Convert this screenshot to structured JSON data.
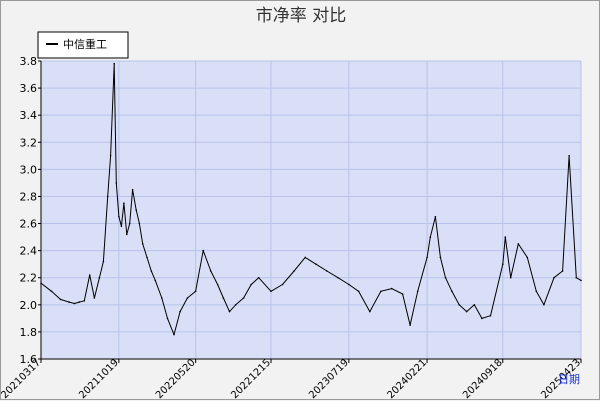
{
  "chart_data": {
    "type": "line",
    "title": "市净率  对比",
    "xlabel": "日期",
    "ylabel": "",
    "ylim": [
      1.6,
      3.8
    ],
    "yticks": [
      1.6,
      1.8,
      2.0,
      2.2,
      2.4,
      2.6,
      2.8,
      3.0,
      3.2,
      3.4,
      3.6,
      3.8
    ],
    "ytick_labels": [
      "1.6",
      "1.8",
      "2.0",
      "2.2",
      "2.4",
      "2.6",
      "2.8",
      "3.0",
      "3.2",
      "3.4",
      "3.6",
      "3.8"
    ],
    "xtick_labels": [
      "20210317",
      "20211019",
      "20220520",
      "20221215",
      "20230719",
      "20240221",
      "20240918",
      "20250423"
    ],
    "grid": true,
    "legend_position": "top-left",
    "series": [
      {
        "name": "中信重工",
        "color": "#000000",
        "x": [
          "20210317",
          "20210415",
          "20210510",
          "20210603",
          "20210618",
          "20210701",
          "20210715",
          "20210730",
          "20210812",
          "20210826",
          "20210906",
          "20210918",
          "20210926",
          "20211006",
          "20211012",
          "20211019",
          "20211026",
          "20211102",
          "20211110",
          "20211118",
          "20211126",
          "20211206",
          "20211215",
          "20211224",
          "20220105",
          "20220117",
          "20220128",
          "20220215",
          "20220303",
          "20220321",
          "20220407",
          "20220427",
          "20220520",
          "20220610",
          "20220701",
          "20220720",
          "20220805",
          "20220822",
          "20220908",
          "20220930",
          "20221021",
          "20221111",
          "20221215",
          "20230116",
          "20230217",
          "20230320",
          "20230419",
          "20230519",
          "20230619",
          "20230719",
          "20230815",
          "20230915",
          "20231016",
          "20231115",
          "20231215",
          "20240105",
          "20240126",
          "20240221",
          "20240301",
          "20240315",
          "20240329",
          "20240412",
          "20240430",
          "20240520",
          "20240610",
          "20240701",
          "20240722",
          "20240815",
          "20240918",
          "20240925",
          "20241010",
          "20241031",
          "20241125",
          "20241220",
          "20250110",
          "20250207",
          "20250303",
          "20250321",
          "20250410",
          "20250423"
        ],
        "values": [
          2.16,
          2.1,
          2.04,
          2.02,
          2.01,
          2.02,
          2.03,
          2.22,
          2.05,
          2.2,
          2.32,
          2.8,
          3.1,
          3.78,
          2.9,
          2.65,
          2.58,
          2.75,
          2.52,
          2.6,
          2.85,
          2.7,
          2.6,
          2.45,
          2.35,
          2.25,
          2.18,
          2.05,
          1.9,
          1.78,
          1.95,
          2.05,
          2.1,
          2.4,
          2.25,
          2.15,
          2.05,
          1.95,
          2.0,
          2.05,
          2.15,
          2.2,
          2.1,
          2.15,
          2.25,
          2.35,
          2.3,
          2.25,
          2.2,
          2.15,
          2.1,
          1.95,
          2.1,
          2.12,
          2.08,
          1.85,
          2.1,
          2.35,
          2.5,
          2.65,
          2.35,
          2.2,
          2.1,
          2.0,
          1.95,
          2.0,
          1.9,
          1.92,
          2.3,
          2.5,
          2.2,
          2.45,
          2.35,
          2.1,
          2.0,
          2.2,
          2.25,
          3.1,
          2.2,
          2.18
        ]
      }
    ]
  }
}
